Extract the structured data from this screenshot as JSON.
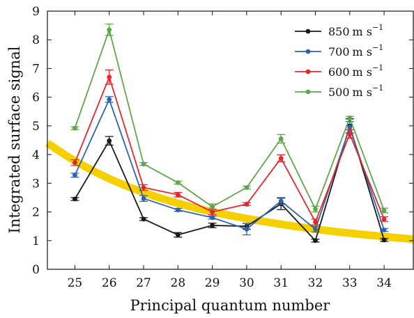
{
  "chart_data": {
    "type": "line",
    "title": "",
    "xlabel": "Principal quantum number",
    "ylabel": "Integrated surface signal",
    "x": [
      25,
      26,
      27,
      28,
      29,
      30,
      31,
      32,
      33,
      34
    ],
    "xlim": [
      24.2,
      34.85
    ],
    "ylim": [
      0,
      9
    ],
    "xticks": [
      "25",
      "26",
      "27",
      "28",
      "29",
      "30",
      "31",
      "32",
      "33",
      "34"
    ],
    "yticks": [
      "0",
      "1",
      "2",
      "3",
      "4",
      "5",
      "6",
      "7",
      "8",
      "9"
    ],
    "grid": false,
    "legend_position": "top-right",
    "series": [
      {
        "name": "850",
        "unit": "m s",
        "exponent": "−1",
        "color": "#1a1a1a",
        "values": [
          2.45,
          4.48,
          1.75,
          1.2,
          1.53,
          1.5,
          2.28,
          1.0,
          5.0,
          1.02
        ],
        "errors": [
          0.05,
          0.15,
          0.05,
          0.08,
          0.08,
          0.1,
          0.2,
          0.05,
          0.25,
          0.05
        ]
      },
      {
        "name": "700",
        "unit": "m s",
        "exponent": "−1",
        "color": "#2e63b0",
        "values": [
          3.28,
          5.92,
          2.47,
          2.07,
          1.8,
          1.4,
          2.38,
          1.4,
          4.95,
          1.37
        ],
        "errors": [
          0.07,
          0.1,
          0.1,
          0.05,
          0.05,
          0.2,
          0.12,
          0.1,
          0.2,
          0.05
        ]
      },
      {
        "name": "600",
        "unit": "m s",
        "exponent": "−1",
        "color": "#e8262a",
        "values": [
          3.72,
          6.7,
          2.85,
          2.6,
          2.0,
          2.27,
          3.87,
          1.65,
          4.72,
          1.75
        ],
        "errors": [
          0.1,
          0.25,
          0.1,
          0.08,
          0.1,
          0.05,
          0.12,
          0.1,
          0.15,
          0.08
        ]
      },
      {
        "name": "500",
        "unit": "m s",
        "exponent": "−1",
        "color": "#5fa64a",
        "values": [
          4.92,
          8.35,
          3.67,
          3.02,
          2.18,
          2.85,
          4.55,
          2.1,
          5.28,
          2.05
        ],
        "errors": [
          0.05,
          0.2,
          0.05,
          0.05,
          0.1,
          0.05,
          0.15,
          0.1,
          0.05,
          0.08
        ]
      }
    ],
    "fit_curve": {
      "color": "#f5d000",
      "x": [
        24.2,
        25,
        26,
        27,
        28,
        29,
        30,
        31,
        32,
        33,
        34,
        34.85
      ],
      "y": [
        4.4,
        3.78,
        3.16,
        2.68,
        2.3,
        2.0,
        1.77,
        1.57,
        1.4,
        1.26,
        1.14,
        1.05
      ]
    }
  }
}
